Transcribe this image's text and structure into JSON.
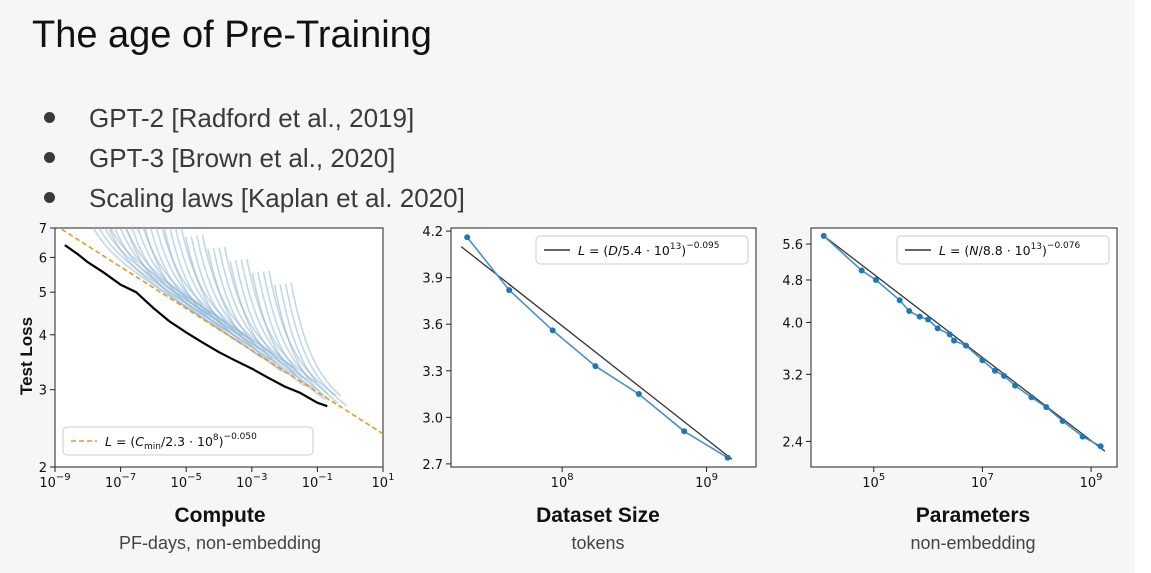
{
  "slide": {
    "title": "The age of Pre-Training",
    "bullets": [
      "GPT-2 [Radford et al., 2019]",
      "GPT-3 [Brown et al., 2020]",
      "Scaling laws [Kaplan et al. 2020]"
    ]
  },
  "colors": {
    "point": "#1f77b4",
    "fit": "#333333",
    "compute_fit": "#e69a24",
    "curve": "#8fb6d6",
    "frontier": "#000000"
  },
  "chart_data": [
    {
      "type": "line",
      "title": "Compute",
      "xlabel": "Compute",
      "xsublabel": "PF-days, non-embedding",
      "ylabel": "Test Loss",
      "xscale": "log",
      "yscale": "log",
      "xlim": [
        1e-09,
        10
      ],
      "ylim": [
        2,
        7
      ],
      "xticks": [
        1e-09,
        1e-07,
        1e-05,
        0.001,
        0.1,
        10
      ],
      "xticklabels": [
        {
          "base": "10",
          "exp": "−9"
        },
        {
          "base": "10",
          "exp": "−7"
        },
        {
          "base": "10",
          "exp": "−5"
        },
        {
          "base": "10",
          "exp": "−3"
        },
        {
          "base": "10",
          "exp": "−1"
        },
        {
          "base": "10",
          "exp": "1"
        }
      ],
      "yticks": [
        2,
        3,
        4,
        5,
        6,
        7
      ],
      "yticklabels": [
        "2",
        "3",
        "4",
        "5",
        "6",
        "7"
      ],
      "legend": "L = (Cmin/2.3 · 10^8)^−0.050",
      "legend_parts": {
        "lhs": "L = (",
        "var": "C",
        "sub": "min",
        "mid": "/2.3 · 10",
        "exp1": "8",
        "rp": ")",
        "exp2": "−0.050"
      },
      "legend_position": "lower-left",
      "fit": {
        "x": [
          1e-09,
          10
        ],
        "y": [
          7.11,
          2.38
        ]
      },
      "frontier": {
        "x": [
          2e-09,
          5e-09,
          1e-08,
          3e-08,
          1e-07,
          3e-07,
          1e-06,
          3e-06,
          1e-05,
          3e-05,
          0.0001,
          0.0003,
          0.001,
          0.003,
          0.01,
          0.03,
          0.1,
          0.2
        ],
        "y": [
          6.4,
          6.1,
          5.85,
          5.55,
          5.2,
          5.0,
          4.6,
          4.3,
          4.05,
          3.85,
          3.65,
          3.5,
          3.35,
          3.2,
          3.05,
          2.95,
          2.8,
          2.75
        ]
      },
      "curve_count": 40
    },
    {
      "type": "line",
      "title": "Dataset Size",
      "xlabel": "Dataset Size",
      "xsublabel": "tokens",
      "xscale": "log",
      "xlim": [
        17000000.0,
        2200000000.0
      ],
      "ylim": [
        2.68,
        4.22
      ],
      "xticks": [
        100000000.0,
        1000000000.0
      ],
      "xticklabels": [
        {
          "base": "10",
          "exp": "8"
        },
        {
          "base": "10",
          "exp": "9"
        }
      ],
      "yticks": [
        2.7,
        3.0,
        3.3,
        3.6,
        3.9,
        4.2
      ],
      "yticklabels": [
        "2.7",
        "3.0",
        "3.3",
        "3.6",
        "3.9",
        "4.2"
      ],
      "legend": "L = (D/5.4 · 10^13)^−0.095",
      "legend_parts": {
        "lhs": "L = (",
        "var": "D",
        "sub": "",
        "mid": "/5.4 · 10",
        "exp1": "13",
        "rp": ")",
        "exp2": "−0.095"
      },
      "legend_position": "upper-right",
      "points": {
        "x": [
          22000000.0,
          43000000.0,
          86000000.0,
          170000000.0,
          340000000.0,
          700000000.0,
          1400000000.0
        ],
        "y": [
          4.16,
          3.82,
          3.56,
          3.33,
          3.15,
          2.91,
          2.74
        ]
      },
      "fit": {
        "x": [
          20000000.0,
          1500000000.0
        ],
        "y": [
          4.1,
          2.73
        ]
      }
    },
    {
      "type": "line",
      "title": "Parameters",
      "xlabel": "Parameters",
      "xsublabel": "non-embedding",
      "xscale": "log",
      "yscale": "log",
      "xlim": [
        7000.0,
        3000000000.0
      ],
      "ylim": [
        2.15,
        6.0
      ],
      "xticks": [
        100000.0,
        10000000.0,
        1000000000.0
      ],
      "xticklabels": [
        {
          "base": "10",
          "exp": "5"
        },
        {
          "base": "10",
          "exp": "7"
        },
        {
          "base": "10",
          "exp": "9"
        }
      ],
      "yticks": [
        2.4,
        3.2,
        4.0,
        4.8,
        5.6
      ],
      "yticklabels": [
        "2.4",
        "3.2",
        "4.0",
        "4.8",
        "5.6"
      ],
      "legend": "L = (N/8.8 · 10^13)^−0.076",
      "legend_parts": {
        "lhs": "L = (",
        "var": "N",
        "sub": "",
        "mid": "/8.8 · 10",
        "exp1": "13",
        "rp": ")",
        "exp2": "−0.076"
      },
      "legend_position": "upper-right",
      "points": {
        "x": [
          12000.0,
          60000.0,
          110000.0,
          300000.0,
          450000.0,
          700000.0,
          1000000.0,
          1500000.0,
          2500000.0,
          3000000.0,
          5000000.0,
          10000000.0,
          17000000.0,
          25000000.0,
          40000000.0,
          80000000.0,
          150000000.0,
          300000000.0,
          700000000.0,
          1500000000.0
        ],
        "y": [
          5.8,
          5.0,
          4.8,
          4.4,
          4.2,
          4.1,
          4.05,
          3.9,
          3.8,
          3.7,
          3.62,
          3.4,
          3.25,
          3.18,
          3.05,
          2.9,
          2.78,
          2.62,
          2.45,
          2.35
        ]
      },
      "fit": {
        "x": [
          12000.0,
          1800000000.0
        ],
        "y": [
          5.8,
          2.3
        ]
      }
    }
  ]
}
